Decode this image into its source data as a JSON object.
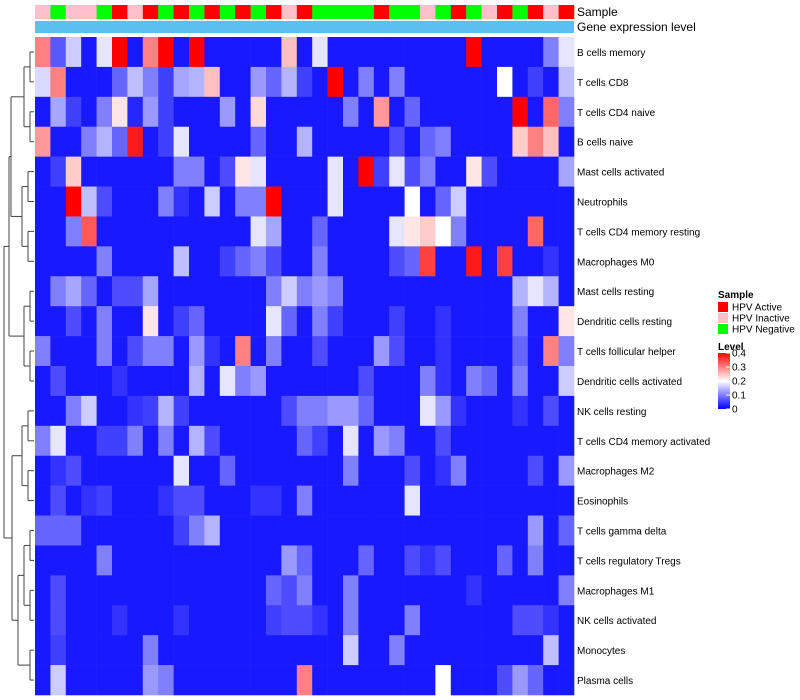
{
  "chart_data": {
    "type": "heatmap",
    "title": "",
    "annotation_tracks": [
      "Sample",
      "Gene expression level"
    ],
    "rows": [
      "B cells memory",
      "T cells CD8",
      "T cells CD4 naive",
      "B cells naive",
      "Mast cells activated",
      "Neutrophils",
      "T cells CD4 memory resting",
      "Macrophages M0",
      "Mast cells resting",
      "Dendritic cells resting",
      "T cells follicular helper",
      "Dendritic cells activated",
      "NK cells resting",
      "T cells CD4 memory activated",
      "Macrophages M2",
      "Eosinophils",
      "T cells gamma delta",
      "T cells regulatory  Tregs",
      "Macrophages M1",
      "NK cells activated",
      "Monocytes",
      "Plasma cells"
    ],
    "sample_groups": [
      "I",
      "N",
      "I",
      "I",
      "N",
      "A",
      "I",
      "A",
      "N",
      "A",
      "N",
      "A",
      "N",
      "A",
      "N",
      "A",
      "I",
      "A",
      "N",
      "N",
      "N",
      "N",
      "A",
      "N",
      "N",
      "I",
      "N",
      "A",
      "N",
      "I",
      "A",
      "N",
      "A",
      "I",
      "A"
    ],
    "legend_sample": {
      "title": "Sample",
      "entries": [
        {
          "key": "A",
          "label": "HPV Active",
          "color": "#ff0000"
        },
        {
          "key": "I",
          "label": "HPV Inactive",
          "color": "#ffc0cb"
        },
        {
          "key": "N",
          "label": "HPV Negative",
          "color": "#00ff00"
        }
      ]
    },
    "legend_level": {
      "title": "Level",
      "range": [
        0,
        0.4
      ],
      "ticks": [
        "0.4",
        "0.3",
        "0.2",
        "0.1",
        "0"
      ],
      "tick_values": [
        0.4,
        0.3,
        0.2,
        0.1,
        0
      ],
      "colors": {
        "low": "#0000ff",
        "mid": "#ffffff",
        "high": "#ff0000"
      }
    },
    "values": [
      [
        0.3,
        0.07,
        0.16,
        0.02,
        0.18,
        0.42,
        0.02,
        0.3,
        0.42,
        0.02,
        0.42,
        0.02,
        0.02,
        0.02,
        0.02,
        0.02,
        0.25,
        0.02,
        0.18,
        0.02,
        0.02,
        0.02,
        0.02,
        0.02,
        0.02,
        0.02,
        0.02,
        0.02,
        0.4,
        0.02,
        0.02,
        0.02,
        0.02,
        0.1,
        0.18
      ],
      [
        0.17,
        0.3,
        0.02,
        0.02,
        0.02,
        0.08,
        0.15,
        0.1,
        0.05,
        0.13,
        0.14,
        0.25,
        0.02,
        0.02,
        0.12,
        0.08,
        0.14,
        0.05,
        0.02,
        0.42,
        0.02,
        0.1,
        0.02,
        0.1,
        0.02,
        0.02,
        0.02,
        0.02,
        0.02,
        0.02,
        0.2,
        0.02,
        0.05,
        0.02,
        0.15
      ],
      [
        0.02,
        0.13,
        0.05,
        0.02,
        0.1,
        0.22,
        0.03,
        0.12,
        0.05,
        0.02,
        0.02,
        0.02,
        0.12,
        0.02,
        0.23,
        0.02,
        0.02,
        0.02,
        0.02,
        0.02,
        0.1,
        0.02,
        0.28,
        0.02,
        0.08,
        0.02,
        0.02,
        0.02,
        0.02,
        0.02,
        0.02,
        0.42,
        0.02,
        0.32,
        0.1
      ],
      [
        0.28,
        0.02,
        0.02,
        0.1,
        0.14,
        0.08,
        0.38,
        0.02,
        0.05,
        0.18,
        0.02,
        0.02,
        0.02,
        0.02,
        0.08,
        0.02,
        0.02,
        0.14,
        0.02,
        0.02,
        0.02,
        0.02,
        0.02,
        0.06,
        0.02,
        0.08,
        0.1,
        0.02,
        0.02,
        0.02,
        0.02,
        0.24,
        0.3,
        0.25,
        0.02
      ],
      [
        0.02,
        0.05,
        0.24,
        0.02,
        0.02,
        0.02,
        0.02,
        0.02,
        0.02,
        0.1,
        0.1,
        0.02,
        0.06,
        0.22,
        0.18,
        0.02,
        0.02,
        0.02,
        0.02,
        0.18,
        0.02,
        0.42,
        0.05,
        0.18,
        0.06,
        0.1,
        0.02,
        0.02,
        0.22,
        0.06,
        0.02,
        0.02,
        0.02,
        0.02,
        0.13
      ],
      [
        0.02,
        0.02,
        0.42,
        0.15,
        0.06,
        0.02,
        0.02,
        0.02,
        0.1,
        0.04,
        0.02,
        0.16,
        0.02,
        0.1,
        0.1,
        0.42,
        0.02,
        0.02,
        0.02,
        0.18,
        0.02,
        0.02,
        0.02,
        0.02,
        0.2,
        0.02,
        0.08,
        0.16,
        0.02,
        0.02,
        0.02,
        0.02,
        0.02,
        0.02,
        0.02
      ],
      [
        0.02,
        0.02,
        0.1,
        0.33,
        0.02,
        0.02,
        0.02,
        0.02,
        0.02,
        0.02,
        0.02,
        0.02,
        0.02,
        0.02,
        0.18,
        0.13,
        0.02,
        0.02,
        0.08,
        0.02,
        0.02,
        0.02,
        0.02,
        0.18,
        0.22,
        0.24,
        0.2,
        0.1,
        0.02,
        0.02,
        0.02,
        0.02,
        0.32,
        0.02,
        0.02
      ],
      [
        0.02,
        0.02,
        0.02,
        0.02,
        0.1,
        0.02,
        0.02,
        0.02,
        0.02,
        0.15,
        0.02,
        0.02,
        0.05,
        0.08,
        0.1,
        0.06,
        0.02,
        0.02,
        0.1,
        0.02,
        0.02,
        0.02,
        0.02,
        0.06,
        0.08,
        0.35,
        0.02,
        0.02,
        0.38,
        0.02,
        0.35,
        0.02,
        0.02,
        0.04,
        0.02
      ],
      [
        0.02,
        0.1,
        0.13,
        0.08,
        0.02,
        0.06,
        0.06,
        0.13,
        0.02,
        0.02,
        0.02,
        0.02,
        0.02,
        0.02,
        0.02,
        0.1,
        0.16,
        0.1,
        0.12,
        0.1,
        0.02,
        0.02,
        0.02,
        0.02,
        0.02,
        0.02,
        0.02,
        0.02,
        0.02,
        0.02,
        0.02,
        0.14,
        0.18,
        0.14,
        0.02
      ],
      [
        0.02,
        0.02,
        0.06,
        0.02,
        0.1,
        0.02,
        0.02,
        0.22,
        0.02,
        0.05,
        0.08,
        0.02,
        0.02,
        0.02,
        0.02,
        0.18,
        0.08,
        0.02,
        0.1,
        0.05,
        0.02,
        0.02,
        0.02,
        0.05,
        0.02,
        0.02,
        0.04,
        0.02,
        0.02,
        0.02,
        0.02,
        0.1,
        0.02,
        0.02,
        0.22
      ],
      [
        0.1,
        0.02,
        0.02,
        0.02,
        0.1,
        0.02,
        0.06,
        0.1,
        0.1,
        0.02,
        0.12,
        0.04,
        0.02,
        0.3,
        0.02,
        0.1,
        0.02,
        0.02,
        0.06,
        0.02,
        0.02,
        0.02,
        0.12,
        0.06,
        0.02,
        0.02,
        0.04,
        0.02,
        0.02,
        0.02,
        0.02,
        0.08,
        0.02,
        0.3,
        0.1
      ],
      [
        0.02,
        0.06,
        0.02,
        0.02,
        0.02,
        0.04,
        0.02,
        0.02,
        0.02,
        0.02,
        0.14,
        0.02,
        0.18,
        0.1,
        0.12,
        0.02,
        0.02,
        0.02,
        0.02,
        0.02,
        0.02,
        0.06,
        0.02,
        0.02,
        0.02,
        0.1,
        0.04,
        0.02,
        0.1,
        0.08,
        0.02,
        0.1,
        0.02,
        0.02,
        0.16
      ],
      [
        0.02,
        0.02,
        0.1,
        0.16,
        0.02,
        0.02,
        0.04,
        0.05,
        0.14,
        0.05,
        0.02,
        0.02,
        0.02,
        0.02,
        0.02,
        0.02,
        0.06,
        0.1,
        0.1,
        0.12,
        0.12,
        0.08,
        0.02,
        0.02,
        0.02,
        0.18,
        0.12,
        0.04,
        0.02,
        0.02,
        0.02,
        0.04,
        0.02,
        0.06,
        0.02
      ],
      [
        0.1,
        0.18,
        0.02,
        0.02,
        0.05,
        0.05,
        0.1,
        0.02,
        0.1,
        0.02,
        0.14,
        0.06,
        0.02,
        0.02,
        0.02,
        0.02,
        0.02,
        0.08,
        0.05,
        0.02,
        0.18,
        0.02,
        0.12,
        0.1,
        0.02,
        0.02,
        0.06,
        0.02,
        0.02,
        0.02,
        0.02,
        0.02,
        0.02,
        0.02,
        0.02
      ],
      [
        0.02,
        0.04,
        0.06,
        0.02,
        0.02,
        0.02,
        0.02,
        0.02,
        0.02,
        0.18,
        0.02,
        0.02,
        0.08,
        0.02,
        0.02,
        0.02,
        0.02,
        0.02,
        0.02,
        0.02,
        0.1,
        0.02,
        0.02,
        0.02,
        0.06,
        0.02,
        0.04,
        0.1,
        0.02,
        0.02,
        0.02,
        0.02,
        0.06,
        0.02,
        0.12
      ],
      [
        0.02,
        0.06,
        0.02,
        0.04,
        0.05,
        0.02,
        0.02,
        0.02,
        0.04,
        0.06,
        0.06,
        0.02,
        0.02,
        0.02,
        0.04,
        0.04,
        0.02,
        0.1,
        0.02,
        0.02,
        0.02,
        0.02,
        0.02,
        0.02,
        0.18,
        0.02,
        0.02,
        0.02,
        0.02,
        0.02,
        0.02,
        0.02,
        0.02,
        0.02,
        0.02
      ],
      [
        0.08,
        0.08,
        0.08,
        0.02,
        0.02,
        0.02,
        0.02,
        0.02,
        0.02,
        0.05,
        0.1,
        0.14,
        0.02,
        0.02,
        0.02,
        0.02,
        0.02,
        0.02,
        0.02,
        0.02,
        0.02,
        0.02,
        0.02,
        0.02,
        0.02,
        0.02,
        0.02,
        0.02,
        0.02,
        0.02,
        0.02,
        0.02,
        0.12,
        0.02,
        0.08
      ],
      [
        0.02,
        0.02,
        0.02,
        0.02,
        0.1,
        0.02,
        0.02,
        0.02,
        0.02,
        0.02,
        0.02,
        0.02,
        0.02,
        0.02,
        0.02,
        0.02,
        0.12,
        0.08,
        0.02,
        0.02,
        0.02,
        0.08,
        0.02,
        0.02,
        0.06,
        0.04,
        0.06,
        0.02,
        0.02,
        0.02,
        0.08,
        0.02,
        0.1,
        0.02,
        0.02
      ],
      [
        0.02,
        0.06,
        0.02,
        0.02,
        0.02,
        0.02,
        0.02,
        0.02,
        0.02,
        0.02,
        0.02,
        0.02,
        0.02,
        0.02,
        0.02,
        0.08,
        0.06,
        0.1,
        0.02,
        0.02,
        0.1,
        0.02,
        0.02,
        0.02,
        0.02,
        0.02,
        0.02,
        0.02,
        0.04,
        0.02,
        0.02,
        0.02,
        0.02,
        0.02,
        0.1
      ],
      [
        0.02,
        0.06,
        0.02,
        0.02,
        0.02,
        0.04,
        0.02,
        0.02,
        0.02,
        0.04,
        0.02,
        0.02,
        0.02,
        0.02,
        0.02,
        0.05,
        0.06,
        0.06,
        0.04,
        0.02,
        0.1,
        0.02,
        0.02,
        0.02,
        0.1,
        0.02,
        0.02,
        0.02,
        0.02,
        0.02,
        0.02,
        0.06,
        0.06,
        0.04,
        0.02
      ],
      [
        0.02,
        0.05,
        0.02,
        0.02,
        0.02,
        0.02,
        0.02,
        0.1,
        0.02,
        0.02,
        0.02,
        0.02,
        0.02,
        0.02,
        0.02,
        0.02,
        0.02,
        0.02,
        0.02,
        0.02,
        0.16,
        0.02,
        0.02,
        0.1,
        0.02,
        0.02,
        0.02,
        0.02,
        0.02,
        0.02,
        0.02,
        0.02,
        0.02,
        0.15,
        0.02
      ],
      [
        0.02,
        0.16,
        0.02,
        0.02,
        0.02,
        0.02,
        0.02,
        0.12,
        0.1,
        0.02,
        0.02,
        0.02,
        0.02,
        0.02,
        0.02,
        0.02,
        0.02,
        0.3,
        0.02,
        0.02,
        0.02,
        0.02,
        0.02,
        0.02,
        0.02,
        0.02,
        0.2,
        0.02,
        0.02,
        0.02,
        0.06,
        0.12,
        0.08,
        0.02,
        0.02
      ]
    ],
    "dendrogram_order": [
      [
        0,
        1,
        2,
        3
      ],
      [
        4,
        5,
        6,
        7
      ],
      [
        8,
        9,
        10,
        11
      ],
      [
        12,
        13,
        14,
        15
      ],
      [
        16,
        17,
        18,
        19,
        20,
        21
      ]
    ]
  }
}
